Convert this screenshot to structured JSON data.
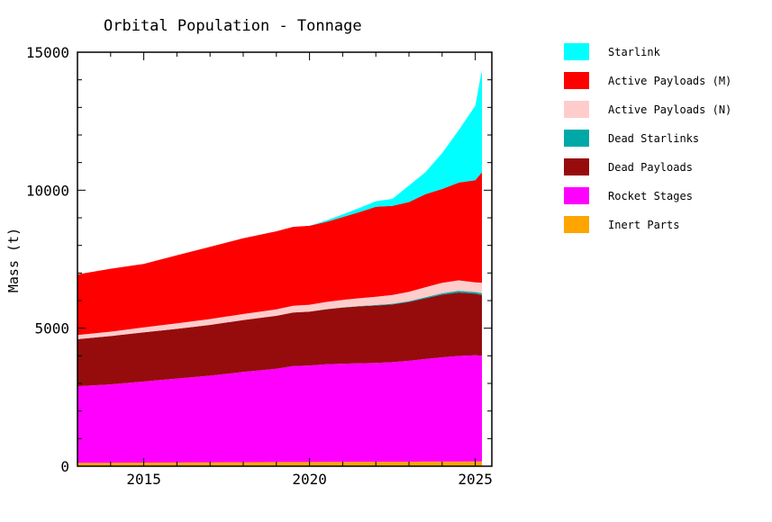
{
  "chart_data": {
    "type": "area",
    "title": "Orbital Population - Tonnage",
    "ylabel": "Mass (t)",
    "xlabel": "",
    "xlim": [
      2013.0,
      2025.5
    ],
    "ylim": [
      0,
      15000
    ],
    "y_ticks": [
      0,
      5000,
      10000,
      15000
    ],
    "y_tick_labels": [
      "0",
      "5000",
      "10000",
      "15000"
    ],
    "x_ticks": [
      2015,
      2020,
      2025
    ],
    "x_tick_labels": [
      "2015",
      "2020",
      "2025"
    ],
    "stacking": "cumulative",
    "legend_position": "right",
    "x": [
      2013.0,
      2014.0,
      2015.0,
      2016.0,
      2017.0,
      2018.0,
      2019.0,
      2019.5,
      2020.0,
      2020.5,
      2021.0,
      2021.5,
      2022.0,
      2022.5,
      2023.0,
      2023.5,
      2024.0,
      2024.5,
      2025.0,
      2025.2
    ],
    "series": [
      {
        "name": "Starlink",
        "color": "#00ffff",
        "values": [
          0,
          0,
          0,
          0,
          0,
          0,
          0,
          0,
          0,
          50,
          100,
          150,
          200,
          250,
          600,
          800,
          1300,
          1900,
          2700,
          3700
        ]
      },
      {
        "name": "Active Payloads (M)",
        "color": "#ff0000",
        "values": [
          2200,
          2280,
          2300,
          2470,
          2620,
          2740,
          2830,
          2860,
          2860,
          2900,
          3000,
          3120,
          3260,
          3230,
          3250,
          3370,
          3400,
          3540,
          3700,
          4000
        ]
      },
      {
        "name": "Active Payloads (N)",
        "color": "#ffcccc",
        "values": [
          150,
          160,
          180,
          200,
          210,
          220,
          230,
          240,
          250,
          260,
          270,
          280,
          300,
          320,
          340,
          360,
          380,
          380,
          350,
          380
        ]
      },
      {
        "name": "Dead Starlinks",
        "color": "#00a8a8",
        "values": [
          0,
          0,
          0,
          0,
          0,
          0,
          0,
          0,
          0,
          5,
          10,
          15,
          20,
          25,
          30,
          40,
          50,
          60,
          60,
          70
        ]
      },
      {
        "name": "Dead Payloads",
        "color": "#960c0c",
        "values": [
          1700,
          1750,
          1780,
          1800,
          1840,
          1880,
          1920,
          1940,
          1950,
          1990,
          2030,
          2060,
          2080,
          2090,
          2130,
          2200,
          2270,
          2300,
          2230,
          2200
        ]
      },
      {
        "name": "Rocket Stages",
        "color": "#ff00ff",
        "values": [
          2780,
          2840,
          2940,
          3040,
          3140,
          3270,
          3380,
          3480,
          3500,
          3540,
          3560,
          3570,
          3580,
          3610,
          3660,
          3720,
          3780,
          3830,
          3850,
          3830
        ]
      },
      {
        "name": "Inert Parts",
        "color": "#ffa500",
        "values": [
          120,
          125,
          130,
          135,
          140,
          145,
          150,
          150,
          150,
          155,
          155,
          160,
          160,
          160,
          160,
          165,
          165,
          165,
          170,
          170
        ]
      }
    ]
  }
}
